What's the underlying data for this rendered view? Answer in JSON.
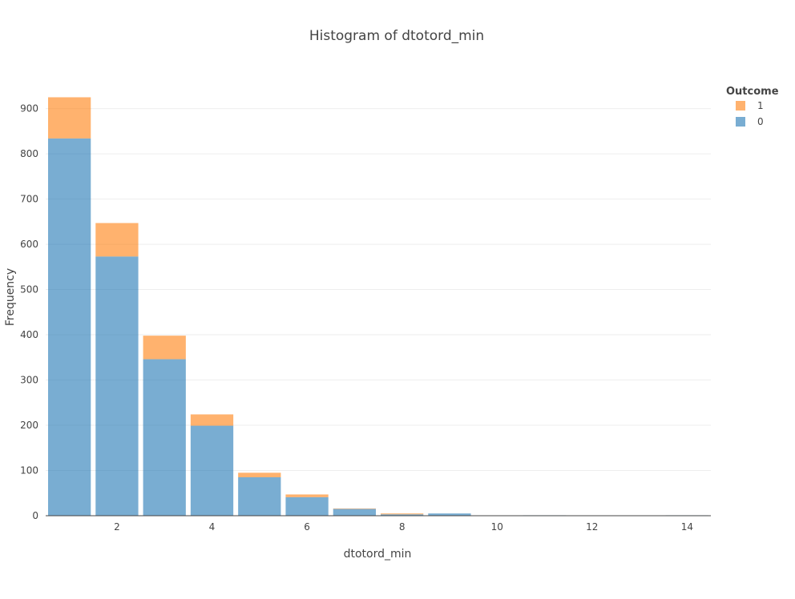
{
  "chart_data": {
    "type": "bar",
    "stacked": true,
    "title": "Histogram of dtotord_min",
    "xlabel": "dtotord_min",
    "ylabel": "Frequency",
    "legend_title": "Outcome",
    "legend_position": "top-right",
    "grid": true,
    "bin_edges": [
      0.5,
      1.5,
      2.5,
      3.5,
      4.5,
      5.5,
      6.5,
      7.5,
      8.5,
      9.5,
      10.5,
      11.5,
      12.5,
      13.5,
      14.5
    ],
    "x_bin_centers": [
      1,
      2,
      3,
      4,
      5,
      6,
      7,
      8,
      9,
      10,
      11,
      12,
      13,
      14
    ],
    "xlim": [
      0.5,
      14.5
    ],
    "ylim": [
      0,
      940
    ],
    "x_ticks": [
      2,
      4,
      6,
      8,
      10,
      12,
      14
    ],
    "y_ticks": [
      0,
      100,
      200,
      300,
      400,
      500,
      600,
      700,
      800,
      900
    ],
    "series": [
      {
        "name": "0",
        "color": "#1f77b4",
        "values": [
          834,
          573,
          346,
          199,
          85,
          41,
          15,
          3,
          5,
          0,
          1,
          0,
          0,
          1
        ]
      },
      {
        "name": "1",
        "color": "#ff7f0e",
        "values": [
          91,
          74,
          52,
          25,
          10,
          6,
          1,
          2,
          0,
          0,
          0,
          0,
          0,
          0
        ]
      }
    ],
    "legend_order": [
      "1",
      "0"
    ],
    "colors": {
      "bar_opacity": 0.6,
      "grid": "#eeeeee",
      "axis_line": "#444444",
      "text": "#444444"
    }
  }
}
